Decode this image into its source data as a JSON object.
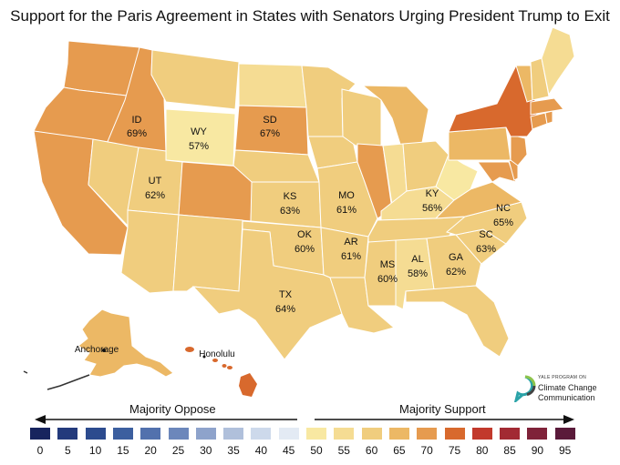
{
  "title": "Support for the Paris Agreement in States with Senators Urging President Trump to Exit",
  "colors": {
    "c50": "#f8e8a2",
    "c55": "#f5dc93",
    "c60": "#f0cd7e",
    "c65": "#ecb865",
    "c70": "#e69b4f",
    "c75": "#d8692d",
    "background": "#ffffff",
    "border": "#ffffff",
    "alaska_outline": "#333333"
  },
  "labeled_states": [
    {
      "abbr": "ID",
      "value": "69%"
    },
    {
      "abbr": "WY",
      "value": "57%"
    },
    {
      "abbr": "SD",
      "value": "67%"
    },
    {
      "abbr": "UT",
      "value": "62%"
    },
    {
      "abbr": "KS",
      "value": "63%"
    },
    {
      "abbr": "MO",
      "value": "61%"
    },
    {
      "abbr": "KY",
      "value": "56%"
    },
    {
      "abbr": "NC",
      "value": "65%"
    },
    {
      "abbr": "OK",
      "value": "60%"
    },
    {
      "abbr": "AR",
      "value": "61%"
    },
    {
      "abbr": "SC",
      "value": "63%"
    },
    {
      "abbr": "TX",
      "value": "64%"
    },
    {
      "abbr": "MS",
      "value": "60%"
    },
    {
      "abbr": "AL",
      "value": "58%"
    },
    {
      "abbr": "GA",
      "value": "62%"
    }
  ],
  "place_labels": {
    "anchorage": "Anchorage",
    "honolulu": "Honolulu"
  },
  "legend": {
    "oppose_label": "Majority Oppose",
    "support_label": "Majority Support",
    "ticks": [
      "0",
      "5",
      "10",
      "15",
      "20",
      "25",
      "30",
      "35",
      "40",
      "45",
      "50",
      "55",
      "60",
      "65",
      "70",
      "75",
      "80",
      "85",
      "90",
      "95"
    ],
    "colors": [
      "#17245e",
      "#233a7c",
      "#2c4b8e",
      "#3c5f9f",
      "#5271ad",
      "#6c87bb",
      "#8ea3cb",
      "#b0c0db",
      "#cdd9eb",
      "#e3eaf4",
      "#f8e8a2",
      "#f5dc93",
      "#f0cd7e",
      "#ecb865",
      "#e69b4f",
      "#d8692d",
      "#c2392c",
      "#a22a33",
      "#7f2239",
      "#5a1a3a"
    ]
  },
  "logo": {
    "small": "YALE PROGRAM ON",
    "line1": "Climate Change",
    "line2": "Communication"
  }
}
